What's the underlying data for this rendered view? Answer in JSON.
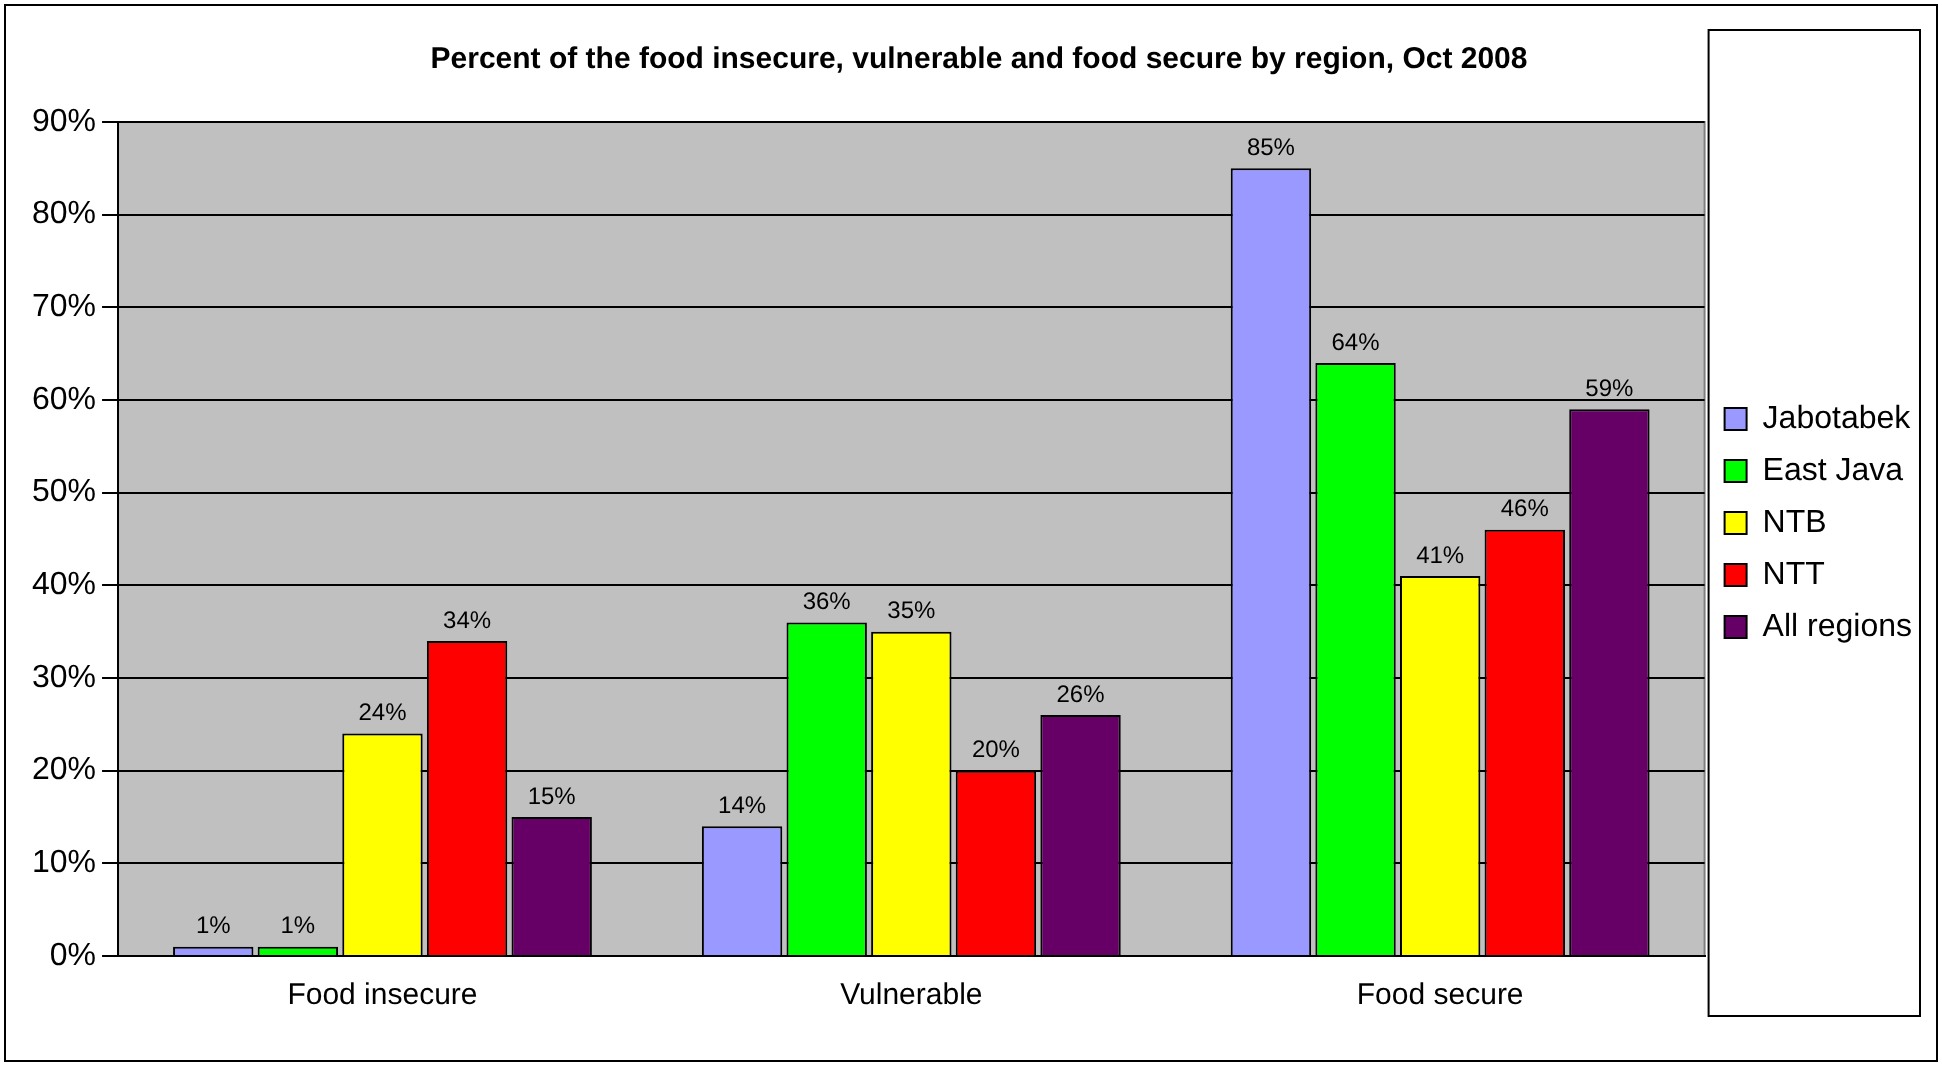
{
  "chart_data": {
    "type": "bar",
    "title": "Percent of the food insecure, vulnerable and food secure by region, Oct 2008",
    "categories": [
      "Food insecure",
      "Vulnerable",
      "Food secure"
    ],
    "series": [
      {
        "name": "Jabotabek",
        "color": "#9999ff",
        "values": [
          1,
          14,
          85
        ],
        "value_labels": [
          "1%",
          "14%",
          "85%"
        ]
      },
      {
        "name": "East Java",
        "color": "#00ff00",
        "values": [
          1,
          36,
          64
        ],
        "value_labels": [
          "1%",
          "36%",
          "64%"
        ]
      },
      {
        "name": "NTB",
        "color": "#ffff00",
        "values": [
          24,
          35,
          41
        ],
        "value_labels": [
          "24%",
          "35%",
          "41%"
        ]
      },
      {
        "name": "NTT",
        "color": "#ff0000",
        "values": [
          34,
          20,
          46
        ],
        "value_labels": [
          "34%",
          "20%",
          "46%"
        ]
      },
      {
        "name": "All regions",
        "color": "#660066",
        "values": [
          15,
          26,
          59
        ],
        "value_labels": [
          "15%",
          "26%",
          "59%"
        ]
      }
    ],
    "ylim": [
      0,
      90
    ],
    "yticks": [
      {
        "value": 0,
        "label": "0%"
      },
      {
        "value": 10,
        "label": "10%"
      },
      {
        "value": 20,
        "label": "20%"
      },
      {
        "value": 30,
        "label": "30%"
      },
      {
        "value": 40,
        "label": "40%"
      },
      {
        "value": 50,
        "label": "50%"
      },
      {
        "value": 60,
        "label": "60%"
      },
      {
        "value": 70,
        "label": "70%"
      },
      {
        "value": 80,
        "label": "80%"
      },
      {
        "value": 90,
        "label": "90%"
      }
    ],
    "grid": "y",
    "legend": "right"
  }
}
